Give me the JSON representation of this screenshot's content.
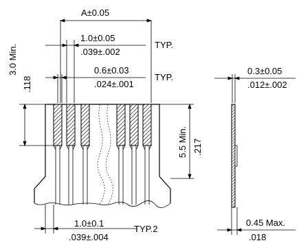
{
  "dimensions": {
    "top_width": "A±0.05",
    "pitch_mm": "1.0±0.05",
    "pitch_in": ".039±.002",
    "pitch_typ": "TYP.",
    "lead_width_mm": "0.6±0.03",
    "lead_width_in": ".024±.001",
    "lead_width_typ": "TYP.",
    "protrusion_mm": "3.0 Min.",
    "protrusion_in": ".118",
    "exposed_length_mm": "5.5 Min.",
    "exposed_length_in": ".217",
    "bottom_pitch_mm": "1.0±0.1",
    "bottom_pitch_in": ".039±.004",
    "bottom_pitch_typ": "TYP.2",
    "thickness_mm": "0.3±0.05",
    "thickness_in": ".012±.002",
    "overall_thickness_mm": "0.45 Max.",
    "overall_thickness_in": ".018"
  }
}
